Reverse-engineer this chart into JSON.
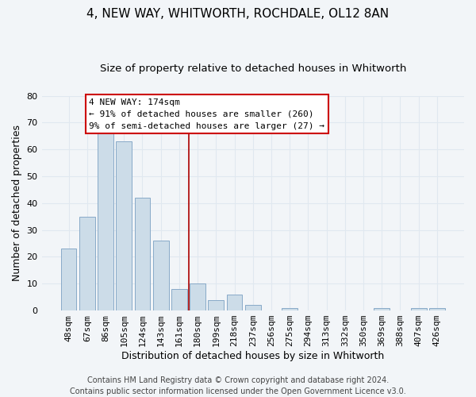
{
  "title": "4, NEW WAY, WHITWORTH, ROCHDALE, OL12 8AN",
  "subtitle": "Size of property relative to detached houses in Whitworth",
  "xlabel": "Distribution of detached houses by size in Whitworth",
  "ylabel": "Number of detached properties",
  "bar_labels": [
    "48sqm",
    "67sqm",
    "86sqm",
    "105sqm",
    "124sqm",
    "143sqm",
    "161sqm",
    "180sqm",
    "199sqm",
    "218sqm",
    "237sqm",
    "256sqm",
    "275sqm",
    "294sqm",
    "313sqm",
    "332sqm",
    "350sqm",
    "369sqm",
    "388sqm",
    "407sqm",
    "426sqm"
  ],
  "bar_values": [
    23,
    35,
    67,
    63,
    42,
    26,
    8,
    10,
    4,
    6,
    2,
    0,
    1,
    0,
    0,
    0,
    0,
    1,
    0,
    1,
    1
  ],
  "bar_color": "#ccdce8",
  "bar_edge_color": "#88aac8",
  "vline_x_index": 7,
  "vline_color": "#aa0000",
  "ylim": [
    0,
    80
  ],
  "yticks": [
    0,
    10,
    20,
    30,
    40,
    50,
    60,
    70,
    80
  ],
  "annotation_title": "4 NEW WAY: 174sqm",
  "annotation_line1": "← 91% of detached houses are smaller (260)",
  "annotation_line2": "9% of semi-detached houses are larger (27) →",
  "annotation_box_facecolor": "#ffffff",
  "annotation_box_edgecolor": "#cc0000",
  "footer_line1": "Contains HM Land Registry data © Crown copyright and database right 2024.",
  "footer_line2": "Contains public sector information licensed under the Open Government Licence v3.0.",
  "background_color": "#f2f5f8",
  "grid_color": "#e0e8f0",
  "title_fontsize": 11,
  "subtitle_fontsize": 9.5,
  "axis_label_fontsize": 9,
  "tick_fontsize": 8,
  "annotation_fontsize": 8,
  "footer_fontsize": 7
}
